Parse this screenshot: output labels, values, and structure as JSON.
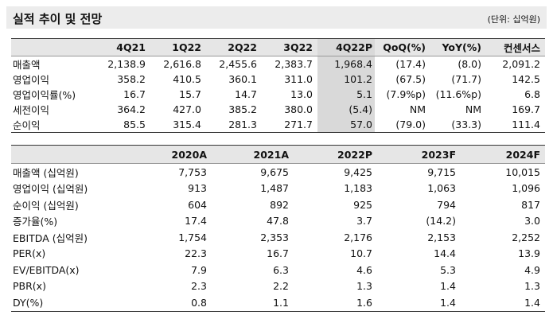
{
  "header": {
    "title": "실적 추이 및 전망",
    "unit": "(단위: 십억원)"
  },
  "table1": {
    "columns": [
      "",
      "4Q21",
      "1Q22",
      "2Q22",
      "3Q22",
      "4Q22P",
      "QoQ(%)",
      "YoY(%)",
      "컨센서스"
    ],
    "rows": [
      [
        "매출액",
        "2,138.9",
        "2,616.8",
        "2,455.6",
        "2,383.7",
        "1,968.4",
        "(17.4)",
        "(8.0)",
        "2,091.2"
      ],
      [
        "영업이익",
        "358.2",
        "410.5",
        "360.1",
        "311.0",
        "101.2",
        "(67.5)",
        "(71.7)",
        "142.5"
      ],
      [
        "영업이익률(%)",
        "16.7",
        "15.7",
        "14.7",
        "13.0",
        "5.1",
        "(7.9%p)",
        "(11.6%p)",
        "6.8"
      ],
      [
        "세전이익",
        "364.2",
        "427.0",
        "385.2",
        "380.0",
        "(5.4)",
        "NM",
        "NM",
        "169.7"
      ],
      [
        "순이익",
        "85.5",
        "315.4",
        "281.3",
        "271.7",
        "57.0",
        "(79.0)",
        "(33.3)",
        "111.4"
      ]
    ]
  },
  "table2": {
    "columns": [
      "",
      "2020A",
      "2021A",
      "2022P",
      "2023F",
      "2024F"
    ],
    "rows": [
      [
        "매출액 (십억원)",
        "7,753",
        "9,675",
        "9,425",
        "9,715",
        "10,015"
      ],
      [
        "영업이익 (십억원)",
        "913",
        "1,487",
        "1,183",
        "1,063",
        "1,096"
      ],
      [
        "순이익 (십억원)",
        "604",
        "892",
        "925",
        "794",
        "817"
      ],
      [
        "증가율(%)",
        "17.4",
        "47.8",
        "3.7",
        "(14.2)",
        "3.0"
      ],
      [
        "EBITDA (십억원)",
        "1,754",
        "2,353",
        "2,176",
        "2,153",
        "2,252"
      ],
      [
        "PER(x)",
        "22.3",
        "16.7",
        "10.7",
        "14.4",
        "13.9"
      ],
      [
        "EV/EBITDA(x)",
        "7.9",
        "6.3",
        "4.6",
        "5.3",
        "4.9"
      ],
      [
        "PBR(x)",
        "2.3",
        "2.2",
        "1.3",
        "1.4",
        "1.3"
      ],
      [
        "DY(%)",
        "0.8",
        "1.1",
        "1.6",
        "1.4",
        "1.4"
      ]
    ]
  }
}
